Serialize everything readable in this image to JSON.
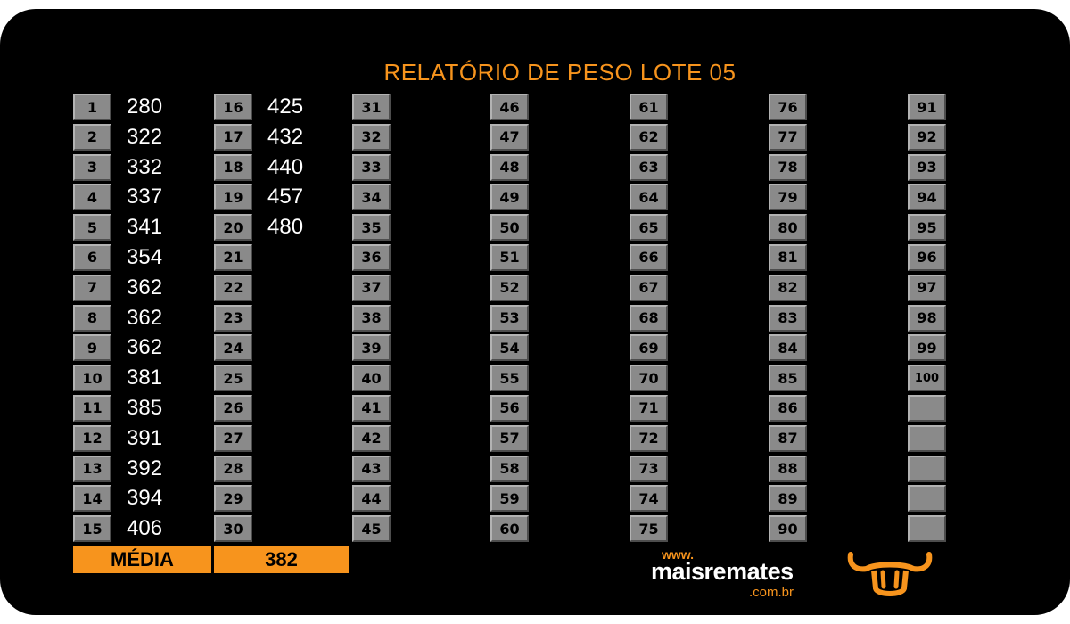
{
  "title": "RELATÓRIO DE PESO LOTE 05",
  "columns": [
    {
      "numbers": [
        "1",
        "2",
        "3",
        "4",
        "5",
        "6",
        "7",
        "8",
        "9",
        "10",
        "11",
        "12",
        "13",
        "14",
        "15"
      ],
      "values": [
        "280",
        "322",
        "332",
        "337",
        "341",
        "354",
        "362",
        "362",
        "362",
        "381",
        "385",
        "391",
        "392",
        "394",
        "406"
      ]
    },
    {
      "numbers": [
        "16",
        "17",
        "18",
        "19",
        "20",
        "21",
        "22",
        "23",
        "24",
        "25",
        "26",
        "27",
        "28",
        "29",
        "30"
      ],
      "values": [
        "425",
        "432",
        "440",
        "457",
        "480",
        "",
        "",
        "",
        "",
        "",
        "",
        "",
        "",
        "",
        ""
      ]
    },
    {
      "numbers": [
        "31",
        "32",
        "33",
        "34",
        "35",
        "36",
        "37",
        "38",
        "39",
        "40",
        "41",
        "42",
        "43",
        "44",
        "45"
      ],
      "values": []
    },
    {
      "numbers": [
        "46",
        "47",
        "48",
        "49",
        "50",
        "51",
        "52",
        "53",
        "54",
        "55",
        "56",
        "57",
        "58",
        "59",
        "60"
      ],
      "values": []
    },
    {
      "numbers": [
        "61",
        "62",
        "63",
        "64",
        "65",
        "66",
        "67",
        "68",
        "69",
        "70",
        "71",
        "72",
        "73",
        "74",
        "75"
      ],
      "values": []
    },
    {
      "numbers": [
        "76",
        "77",
        "78",
        "79",
        "80",
        "81",
        "82",
        "83",
        "84",
        "85",
        "86",
        "87",
        "88",
        "89",
        "90"
      ],
      "values": []
    },
    {
      "numbers": [
        "91",
        "92",
        "93",
        "94",
        "95",
        "96",
        "97",
        "98",
        "99",
        "100",
        "",
        "",
        "",
        "",
        ""
      ],
      "values": []
    }
  ],
  "summary": {
    "label": "MÉDIA",
    "value": "382"
  },
  "brand": {
    "www": "www.",
    "name": "maisremates",
    "tld": ".com.br"
  },
  "logo_icon": "bull-head-icon",
  "colors": {
    "accent": "#f7941d",
    "background": "#000000",
    "cell": "#8a8a8a"
  }
}
